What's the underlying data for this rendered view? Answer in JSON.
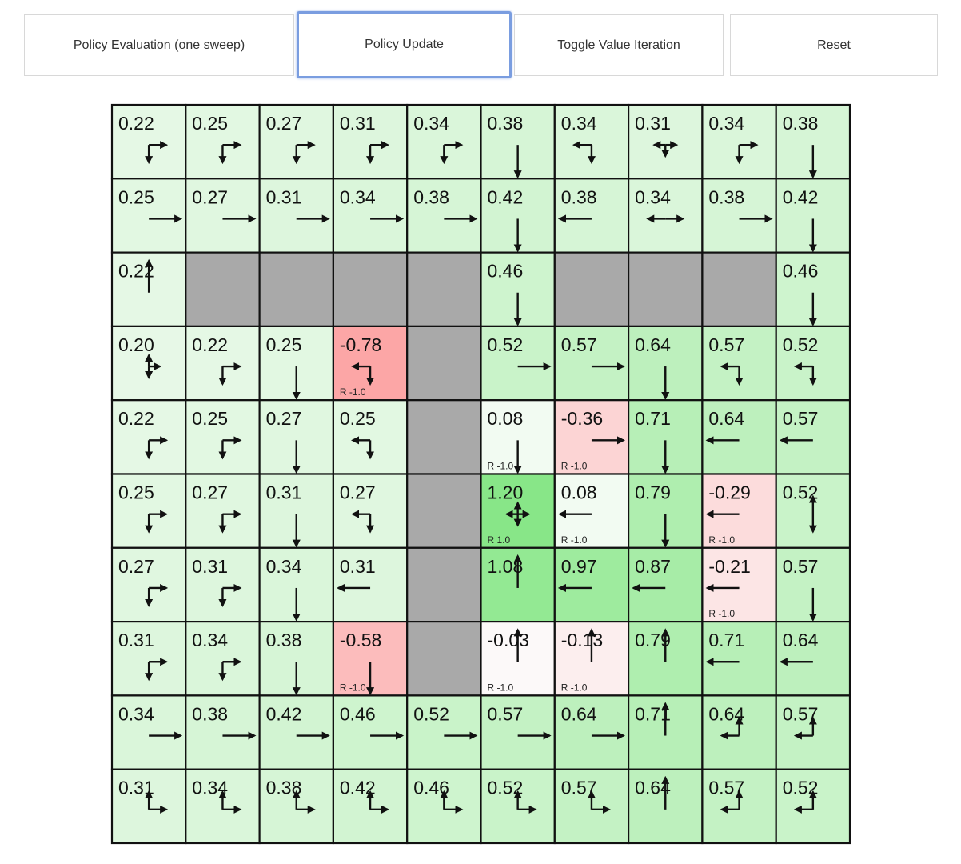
{
  "toolbar": {
    "buttons": [
      {
        "label": "Policy Evaluation (one sweep)"
      },
      {
        "label": "Policy Update",
        "focused": true
      },
      {
        "label": "Toggle Value Iteration"
      },
      {
        "label": "Reset"
      }
    ]
  },
  "colors": {
    "wall": "#a9a9a9",
    "grid_line": "#111111",
    "focus_border": "#7a9de0"
  },
  "gridworld": {
    "rows": [
      [
        {
          "v": "0.22",
          "p": "DR"
        },
        {
          "v": "0.25",
          "p": "DR"
        },
        {
          "v": "0.27",
          "p": "DR"
        },
        {
          "v": "0.31",
          "p": "DR"
        },
        {
          "v": "0.34",
          "p": "DR"
        },
        {
          "v": "0.38",
          "p": "D"
        },
        {
          "v": "0.34",
          "p": "LD"
        },
        {
          "v": "0.31",
          "p": "LRD"
        },
        {
          "v": "0.34",
          "p": "DR"
        },
        {
          "v": "0.38",
          "p": "D"
        }
      ],
      [
        {
          "v": "0.25",
          "p": "R"
        },
        {
          "v": "0.27",
          "p": "R"
        },
        {
          "v": "0.31",
          "p": "R"
        },
        {
          "v": "0.34",
          "p": "R"
        },
        {
          "v": "0.38",
          "p": "R"
        },
        {
          "v": "0.42",
          "p": "D"
        },
        {
          "v": "0.38",
          "p": "L"
        },
        {
          "v": "0.34",
          "p": "LR"
        },
        {
          "v": "0.38",
          "p": "R"
        },
        {
          "v": "0.42",
          "p": "D"
        }
      ],
      [
        {
          "v": "0.22",
          "p": "U"
        },
        {
          "wall": true
        },
        {
          "wall": true
        },
        {
          "wall": true
        },
        {
          "wall": true
        },
        {
          "v": "0.46",
          "p": "D"
        },
        {
          "wall": true
        },
        {
          "wall": true
        },
        {
          "wall": true
        },
        {
          "v": "0.46",
          "p": "D"
        }
      ],
      [
        {
          "v": "0.20",
          "p": "UDR"
        },
        {
          "v": "0.22",
          "p": "DR"
        },
        {
          "v": "0.25",
          "p": "D"
        },
        {
          "v": "-0.78",
          "p": "LD",
          "r": "R -1.0"
        },
        {
          "wall": true
        },
        {
          "v": "0.52",
          "p": "R"
        },
        {
          "v": "0.57",
          "p": "R"
        },
        {
          "v": "0.64",
          "p": "D"
        },
        {
          "v": "0.57",
          "p": "LD"
        },
        {
          "v": "0.52",
          "p": "LD"
        }
      ],
      [
        {
          "v": "0.22",
          "p": "DR"
        },
        {
          "v": "0.25",
          "p": "DR"
        },
        {
          "v": "0.27",
          "p": "D"
        },
        {
          "v": "0.25",
          "p": "LD"
        },
        {
          "wall": true
        },
        {
          "v": "0.08",
          "p": "D",
          "r": "R -1.0"
        },
        {
          "v": "-0.36",
          "p": "R",
          "r": "R -1.0"
        },
        {
          "v": "0.71",
          "p": "D"
        },
        {
          "v": "0.64",
          "p": "L"
        },
        {
          "v": "0.57",
          "p": "L"
        }
      ],
      [
        {
          "v": "0.25",
          "p": "DR"
        },
        {
          "v": "0.27",
          "p": "DR"
        },
        {
          "v": "0.31",
          "p": "D"
        },
        {
          "v": "0.27",
          "p": "LD"
        },
        {
          "wall": true
        },
        {
          "v": "1.20",
          "p": "UDLR",
          "r": "R 1.0"
        },
        {
          "v": "0.08",
          "p": "L",
          "r": "R -1.0"
        },
        {
          "v": "0.79",
          "p": "D"
        },
        {
          "v": "-0.29",
          "p": "L",
          "r": "R -1.0"
        },
        {
          "v": "0.52",
          "p": "UD"
        }
      ],
      [
        {
          "v": "0.27",
          "p": "DR"
        },
        {
          "v": "0.31",
          "p": "DR"
        },
        {
          "v": "0.34",
          "p": "D"
        },
        {
          "v": "0.31",
          "p": "L"
        },
        {
          "wall": true
        },
        {
          "v": "1.08",
          "p": "U"
        },
        {
          "v": "0.97",
          "p": "L"
        },
        {
          "v": "0.87",
          "p": "L"
        },
        {
          "v": "-0.21",
          "p": "L",
          "r": "R -1.0"
        },
        {
          "v": "0.57",
          "p": "D"
        }
      ],
      [
        {
          "v": "0.31",
          "p": "DR"
        },
        {
          "v": "0.34",
          "p": "DR"
        },
        {
          "v": "0.38",
          "p": "D"
        },
        {
          "v": "-0.58",
          "p": "D",
          "r": "R -1.0"
        },
        {
          "wall": true
        },
        {
          "v": "-0.03",
          "p": "U",
          "r": "R -1.0"
        },
        {
          "v": "-0.13",
          "p": "U",
          "r": "R -1.0"
        },
        {
          "v": "0.79",
          "p": "U"
        },
        {
          "v": "0.71",
          "p": "L"
        },
        {
          "v": "0.64",
          "p": "L"
        }
      ],
      [
        {
          "v": "0.34",
          "p": "R"
        },
        {
          "v": "0.38",
          "p": "R"
        },
        {
          "v": "0.42",
          "p": "R"
        },
        {
          "v": "0.46",
          "p": "R"
        },
        {
          "v": "0.52",
          "p": "R"
        },
        {
          "v": "0.57",
          "p": "R"
        },
        {
          "v": "0.64",
          "p": "R"
        },
        {
          "v": "0.71",
          "p": "U"
        },
        {
          "v": "0.64",
          "p": "LU"
        },
        {
          "v": "0.57",
          "p": "LU"
        }
      ],
      [
        {
          "v": "0.31",
          "p": "UR"
        },
        {
          "v": "0.34",
          "p": "UR"
        },
        {
          "v": "0.38",
          "p": "UR"
        },
        {
          "v": "0.42",
          "p": "UR"
        },
        {
          "v": "0.46",
          "p": "UR"
        },
        {
          "v": "0.52",
          "p": "UR"
        },
        {
          "v": "0.57",
          "p": "UR"
        },
        {
          "v": "0.64",
          "p": "U"
        },
        {
          "v": "0.57",
          "p": "LU"
        },
        {
          "v": "0.52",
          "p": "LU"
        }
      ]
    ]
  }
}
